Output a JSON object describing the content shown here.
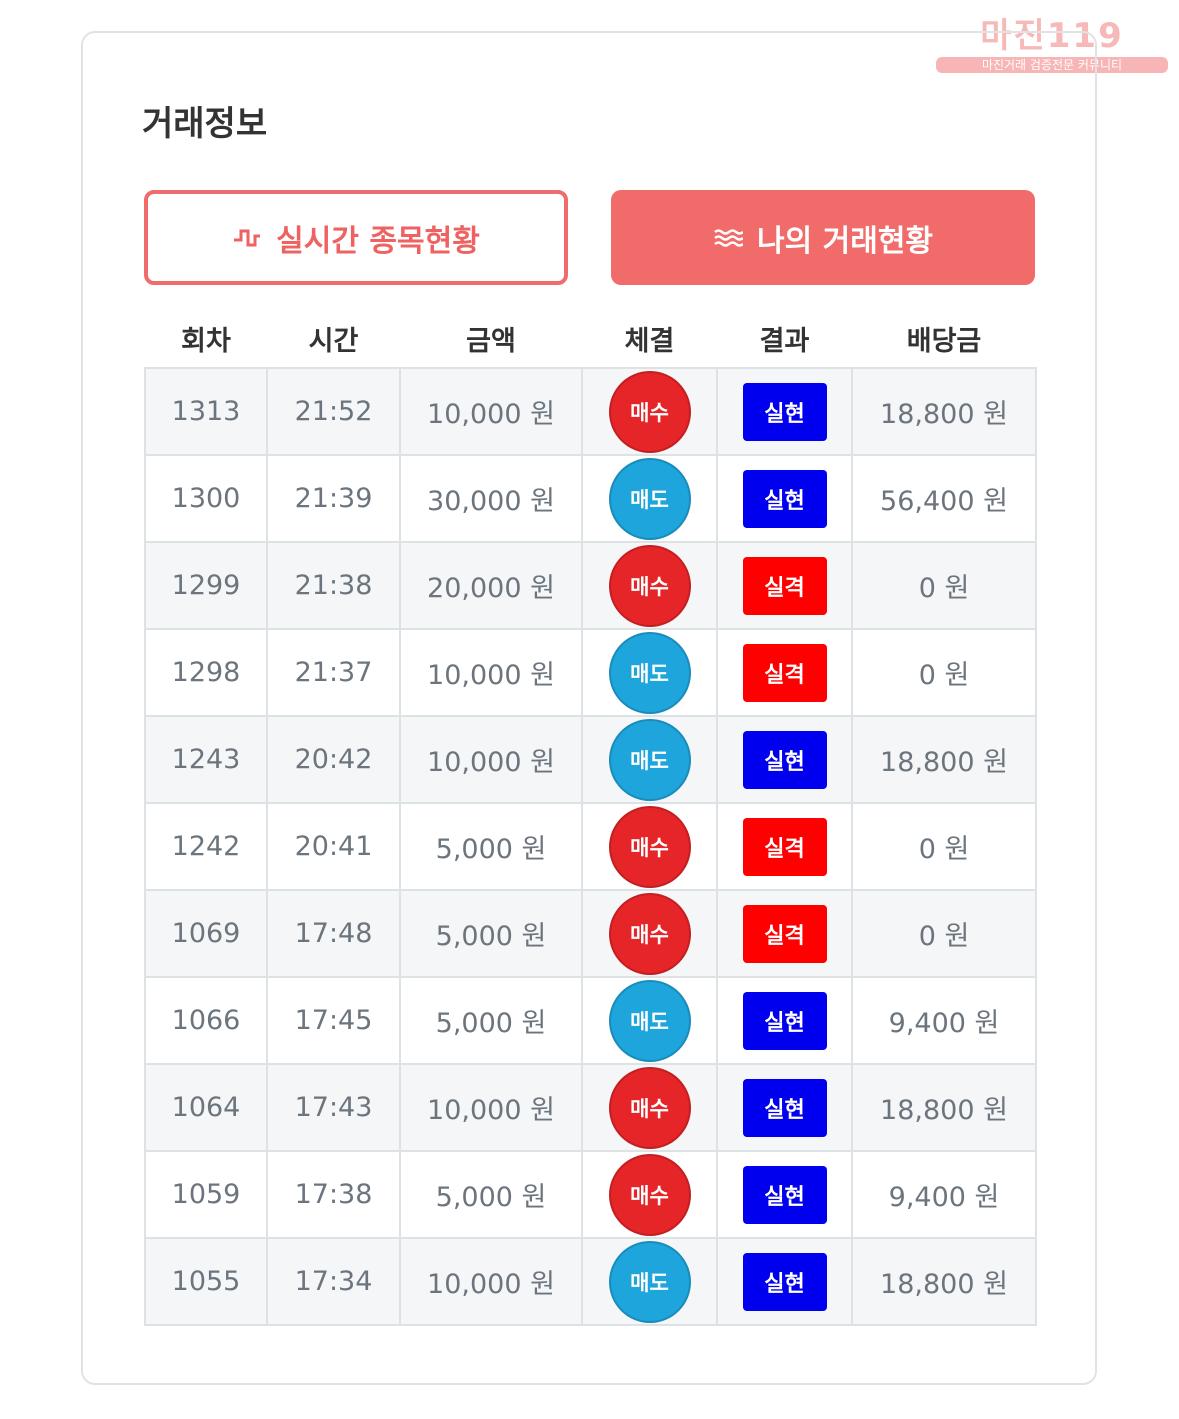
{
  "watermark": {
    "title": "마진119",
    "subtitle": "마진거래 검증전문 커뮤니티"
  },
  "header": {
    "title": "거래정보"
  },
  "tabs": [
    "실시간 종목현황",
    "나의 거래현황"
  ],
  "table": {
    "columns": [
      "회차",
      "시간",
      "금액",
      "체결",
      "결과",
      "배당금"
    ],
    "rows": [
      [
        "1313",
        "21:52",
        "10,000 원",
        {
          "text": "매수",
          "color": "#e52528"
        },
        {
          "text": "실현",
          "color": "#0000ee"
        },
        "18,800 원"
      ],
      [
        "1300",
        "21:39",
        "30,000 원",
        {
          "text": "매도",
          "color": "#1ea5dc"
        },
        {
          "text": "실현",
          "color": "#0000ee"
        },
        "56,400 원"
      ],
      [
        "1299",
        "21:38",
        "20,000 원",
        {
          "text": "매수",
          "color": "#e52528"
        },
        {
          "text": "실격",
          "color": "#ff0000"
        },
        "0 원"
      ],
      [
        "1298",
        "21:37",
        "10,000 원",
        {
          "text": "매도",
          "color": "#1ea5dc"
        },
        {
          "text": "실격",
          "color": "#ff0000"
        },
        "0 원"
      ],
      [
        "1243",
        "20:42",
        "10,000 원",
        {
          "text": "매도",
          "color": "#1ea5dc"
        },
        {
          "text": "실현",
          "color": "#0000ee"
        },
        "18,800 원"
      ],
      [
        "1242",
        "20:41",
        "5,000 원",
        {
          "text": "매수",
          "color": "#e52528"
        },
        {
          "text": "실격",
          "color": "#ff0000"
        },
        "0 원"
      ],
      [
        "1069",
        "17:48",
        "5,000 원",
        {
          "text": "매수",
          "color": "#e52528"
        },
        {
          "text": "실격",
          "color": "#ff0000"
        },
        "0 원"
      ],
      [
        "1066",
        "17:45",
        "5,000 원",
        {
          "text": "매도",
          "color": "#1ea5dc"
        },
        {
          "text": "실현",
          "color": "#0000ee"
        },
        "9,400 원"
      ],
      [
        "1064",
        "17:43",
        "10,000 원",
        {
          "text": "매수",
          "color": "#e52528"
        },
        {
          "text": "실현",
          "color": "#0000ee"
        },
        "18,800 원"
      ],
      [
        "1059",
        "17:38",
        "5,000 원",
        {
          "text": "매수",
          "color": "#e52528"
        },
        {
          "text": "실현",
          "color": "#0000ee"
        },
        "9,400 원"
      ],
      [
        "1055",
        "17:34",
        "10,000 원",
        {
          "text": "매도",
          "color": "#1ea5dc"
        },
        {
          "text": "실현",
          "color": "#0000ee"
        },
        "18,800 원"
      ]
    ]
  }
}
